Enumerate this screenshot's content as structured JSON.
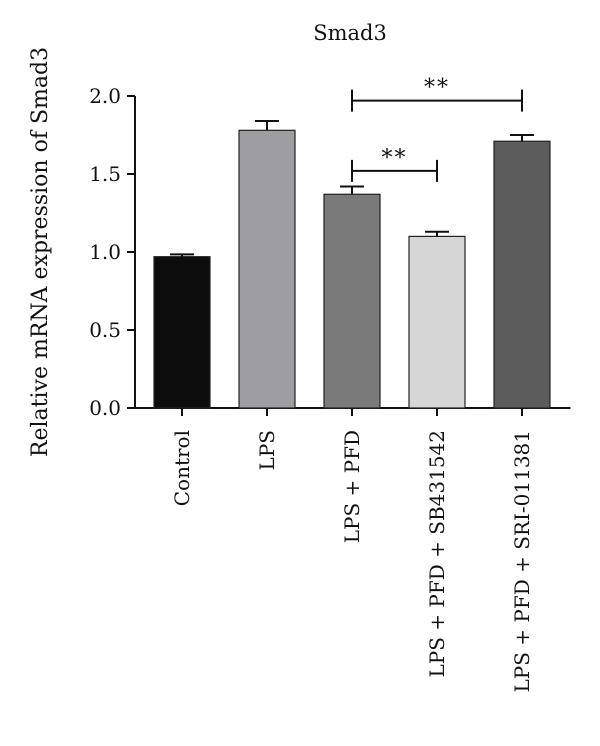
{
  "chart_data": {
    "type": "bar",
    "title": "Smad3",
    "xlabel": "",
    "ylabel": "Relative mRNA expression of Smad3",
    "ylim": [
      0,
      2.0
    ],
    "yticks": [
      "0.0",
      "0.5",
      "1.0",
      "1.5",
      "2.0"
    ],
    "categories": [
      "Control",
      "LPS",
      "LPS + PFD",
      "LPS + PFD + SB431542",
      "LPS + PFD + SRI-011381"
    ],
    "values": [
      0.97,
      1.78,
      1.37,
      1.1,
      1.71
    ],
    "errors": [
      0.015,
      0.06,
      0.05,
      0.03,
      0.04
    ],
    "bar_colors": [
      "#0d0d0d",
      "#9e9da2",
      "#7a7a7a",
      "#d6d6d6",
      "#5c5c5c"
    ],
    "significance": [
      {
        "from": 2,
        "to": 4,
        "label": "**",
        "y": 1.97
      },
      {
        "from": 2,
        "to": 3,
        "label": "**",
        "y": 1.52
      }
    ],
    "grid": false,
    "legend": "none"
  }
}
